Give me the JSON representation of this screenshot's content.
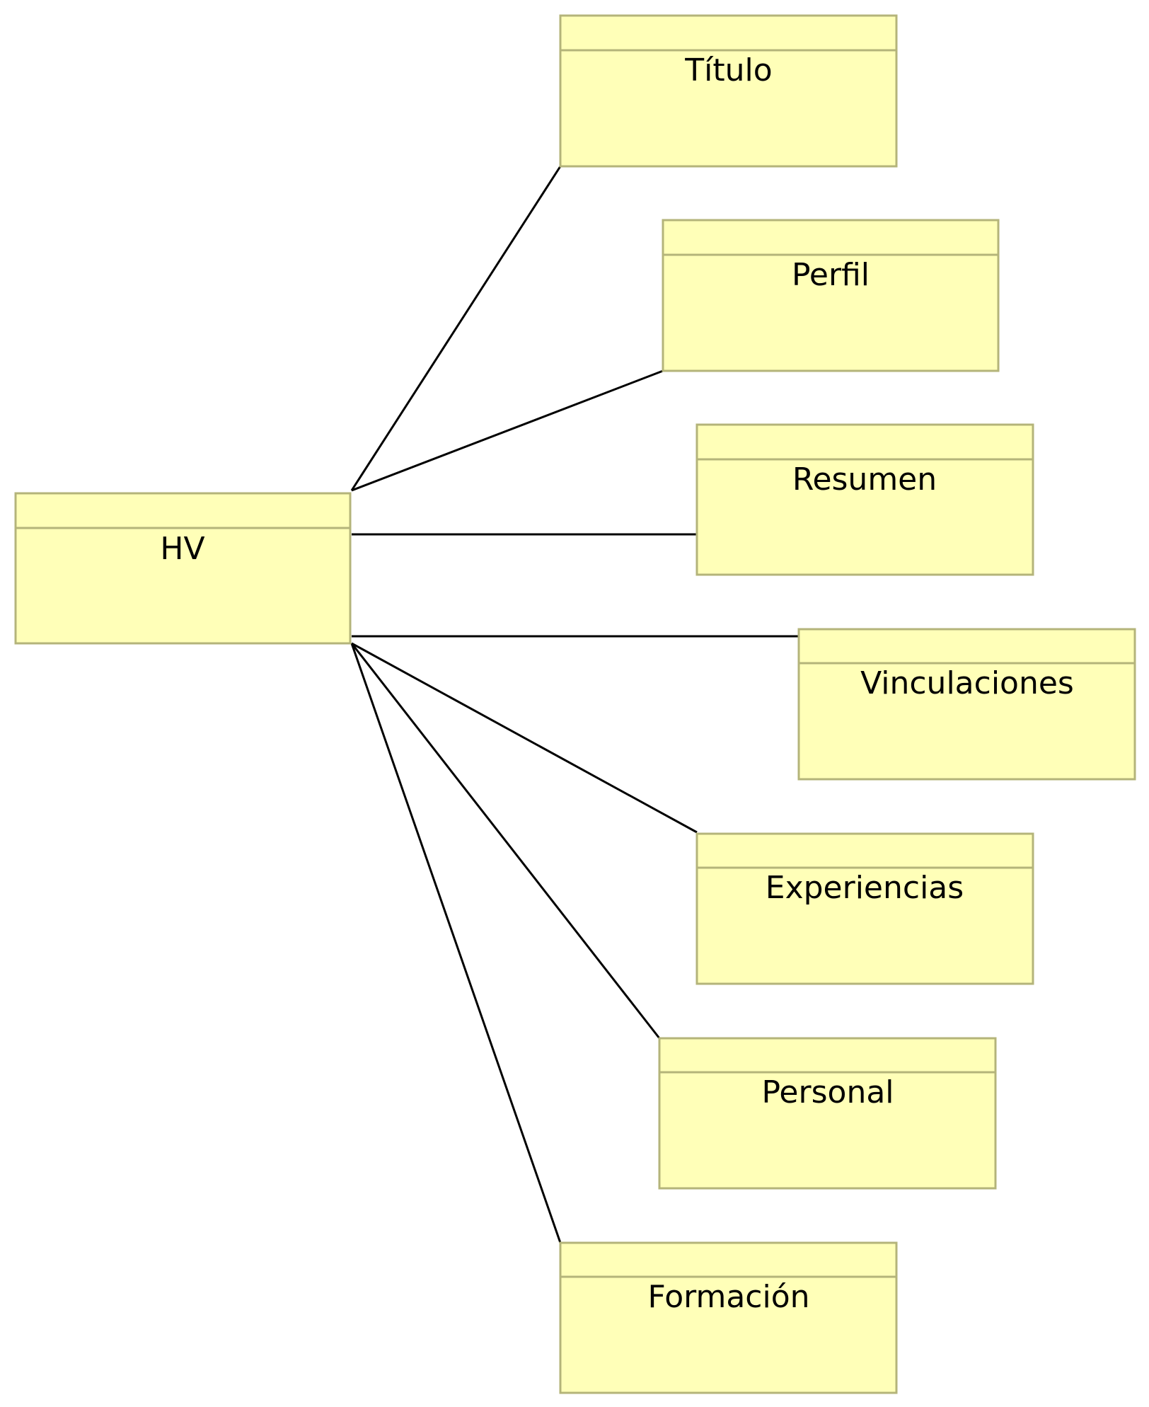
{
  "diagram": {
    "root": {
      "name": "HV"
    },
    "children": [
      {
        "name": "Título"
      },
      {
        "name": "Perfil"
      },
      {
        "name": "Resumen"
      },
      {
        "name": "Vinculaciones"
      },
      {
        "name": "Experiencias"
      },
      {
        "name": "Personal"
      },
      {
        "name": "Formación"
      }
    ]
  },
  "colors": {
    "box_fill": "#ffffb8",
    "box_border": "#b4b47a",
    "connector": "#000000"
  }
}
